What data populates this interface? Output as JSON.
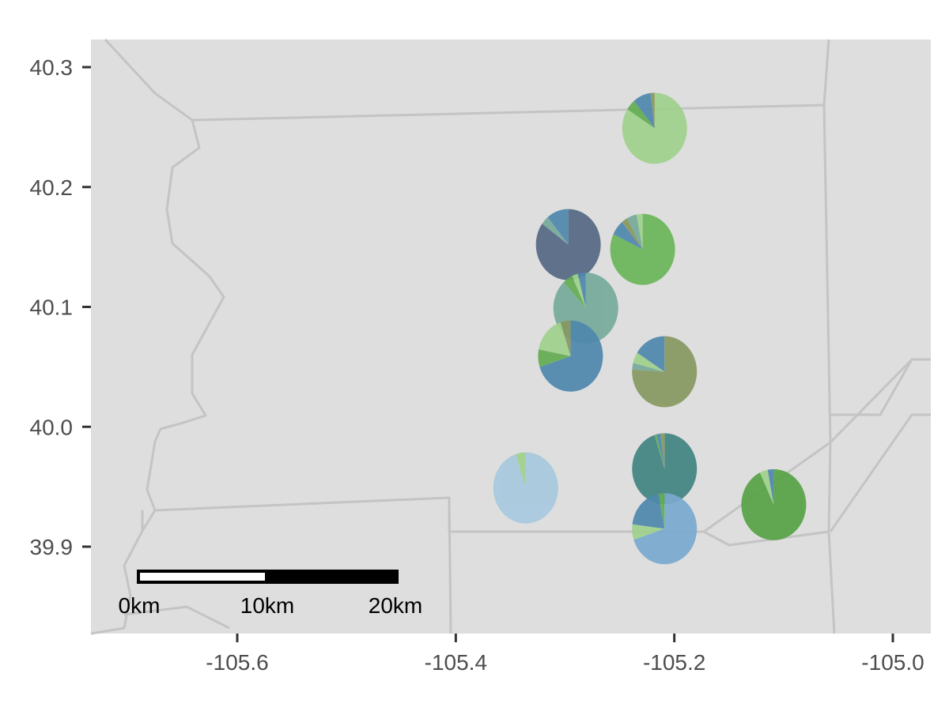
{
  "map": {
    "type": "map-pie",
    "colors": {
      "panel_bg": "#dedede",
      "boundary": "#c4c4c4"
    },
    "x_axis": {
      "range": [
        -105.74,
        -104.97
      ],
      "ticks": [
        -105.6,
        -105.4,
        -105.2,
        -105.0
      ],
      "tick_labels": [
        "-105.6",
        "-105.4",
        "-105.2",
        "-105.0"
      ]
    },
    "y_axis": {
      "range": [
        39.833,
        40.325
      ],
      "ticks": [
        39.9,
        40.0,
        40.1,
        40.2,
        40.3
      ],
      "tick_labels": [
        "39.9",
        "40.0",
        "40.1",
        "40.2",
        "40.3"
      ]
    },
    "scale_bar": {
      "labels": [
        "0km",
        "10km",
        "20km"
      ],
      "max_km": 20
    },
    "pies": [
      {
        "lon": -105.218,
        "lat": 40.249,
        "slices": [
          {
            "color": "#a0d18c",
            "fraction": 0.84
          },
          {
            "color": "#63ad52",
            "fraction": 0.05
          },
          {
            "color": "#4f88ae",
            "fraction": 0.09
          },
          {
            "color": "#88985f",
            "fraction": 0.02
          }
        ]
      },
      {
        "lon": -105.297,
        "lat": 40.152,
        "slices": [
          {
            "color": "#566985",
            "fraction": 0.85
          },
          {
            "color": "#76aa9b",
            "fraction": 0.04
          },
          {
            "color": "#4f88ae",
            "fraction": 0.11
          }
        ]
      },
      {
        "lon": -105.229,
        "lat": 40.148,
        "slices": [
          {
            "color": "#6ab65a",
            "fraction": 0.82
          },
          {
            "color": "#4f88ae",
            "fraction": 0.07
          },
          {
            "color": "#88985f",
            "fraction": 0.03
          },
          {
            "color": "#76aa9b",
            "fraction": 0.05
          },
          {
            "color": "#a0d18c",
            "fraction": 0.03
          }
        ]
      },
      {
        "lon": -105.281,
        "lat": 40.099,
        "slices": [
          {
            "color": "#76aa9b",
            "fraction": 0.88
          },
          {
            "color": "#63ad52",
            "fraction": 0.05
          },
          {
            "color": "#a0d18c",
            "fraction": 0.03
          },
          {
            "color": "#4f88ae",
            "fraction": 0.04
          }
        ]
      },
      {
        "lon": -105.295,
        "lat": 40.059,
        "slices": [
          {
            "color": "#4f88ae",
            "fraction": 0.7
          },
          {
            "color": "#63ad52",
            "fraction": 0.08
          },
          {
            "color": "#a0d18c",
            "fraction": 0.17
          },
          {
            "color": "#88985f",
            "fraction": 0.05
          }
        ]
      },
      {
        "lon": -105.209,
        "lat": 40.046,
        "slices": [
          {
            "color": "#879961",
            "fraction": 0.76
          },
          {
            "color": "#76aa9b",
            "fraction": 0.03
          },
          {
            "color": "#a0d18c",
            "fraction": 0.05
          },
          {
            "color": "#4f88ae",
            "fraction": 0.16
          }
        ]
      },
      {
        "lon": -105.209,
        "lat": 39.965,
        "slices": [
          {
            "color": "#418582",
            "fraction": 0.95
          },
          {
            "color": "#63ad52",
            "fraction": 0.01
          },
          {
            "color": "#4f88ae",
            "fraction": 0.02
          },
          {
            "color": "#88985f",
            "fraction": 0.02
          }
        ]
      },
      {
        "lon": -105.336,
        "lat": 39.949,
        "slices": [
          {
            "color": "#a7c9df",
            "fraction": 0.95
          },
          {
            "color": "#a0d18c",
            "fraction": 0.05
          }
        ]
      },
      {
        "lon": -105.109,
        "lat": 39.935,
        "slices": [
          {
            "color": "#57a346",
            "fraction": 0.93
          },
          {
            "color": "#a0d18c",
            "fraction": 0.04
          },
          {
            "color": "#4f88ae",
            "fraction": 0.03
          }
        ]
      },
      {
        "lon": -105.209,
        "lat": 39.915,
        "slices": [
          {
            "color": "#7aaacf",
            "fraction": 0.7
          },
          {
            "color": "#a0d18c",
            "fraction": 0.07
          },
          {
            "color": "#4f88ae",
            "fraction": 0.2
          },
          {
            "color": "#63ad52",
            "fraction": 0.03
          }
        ]
      }
    ]
  }
}
